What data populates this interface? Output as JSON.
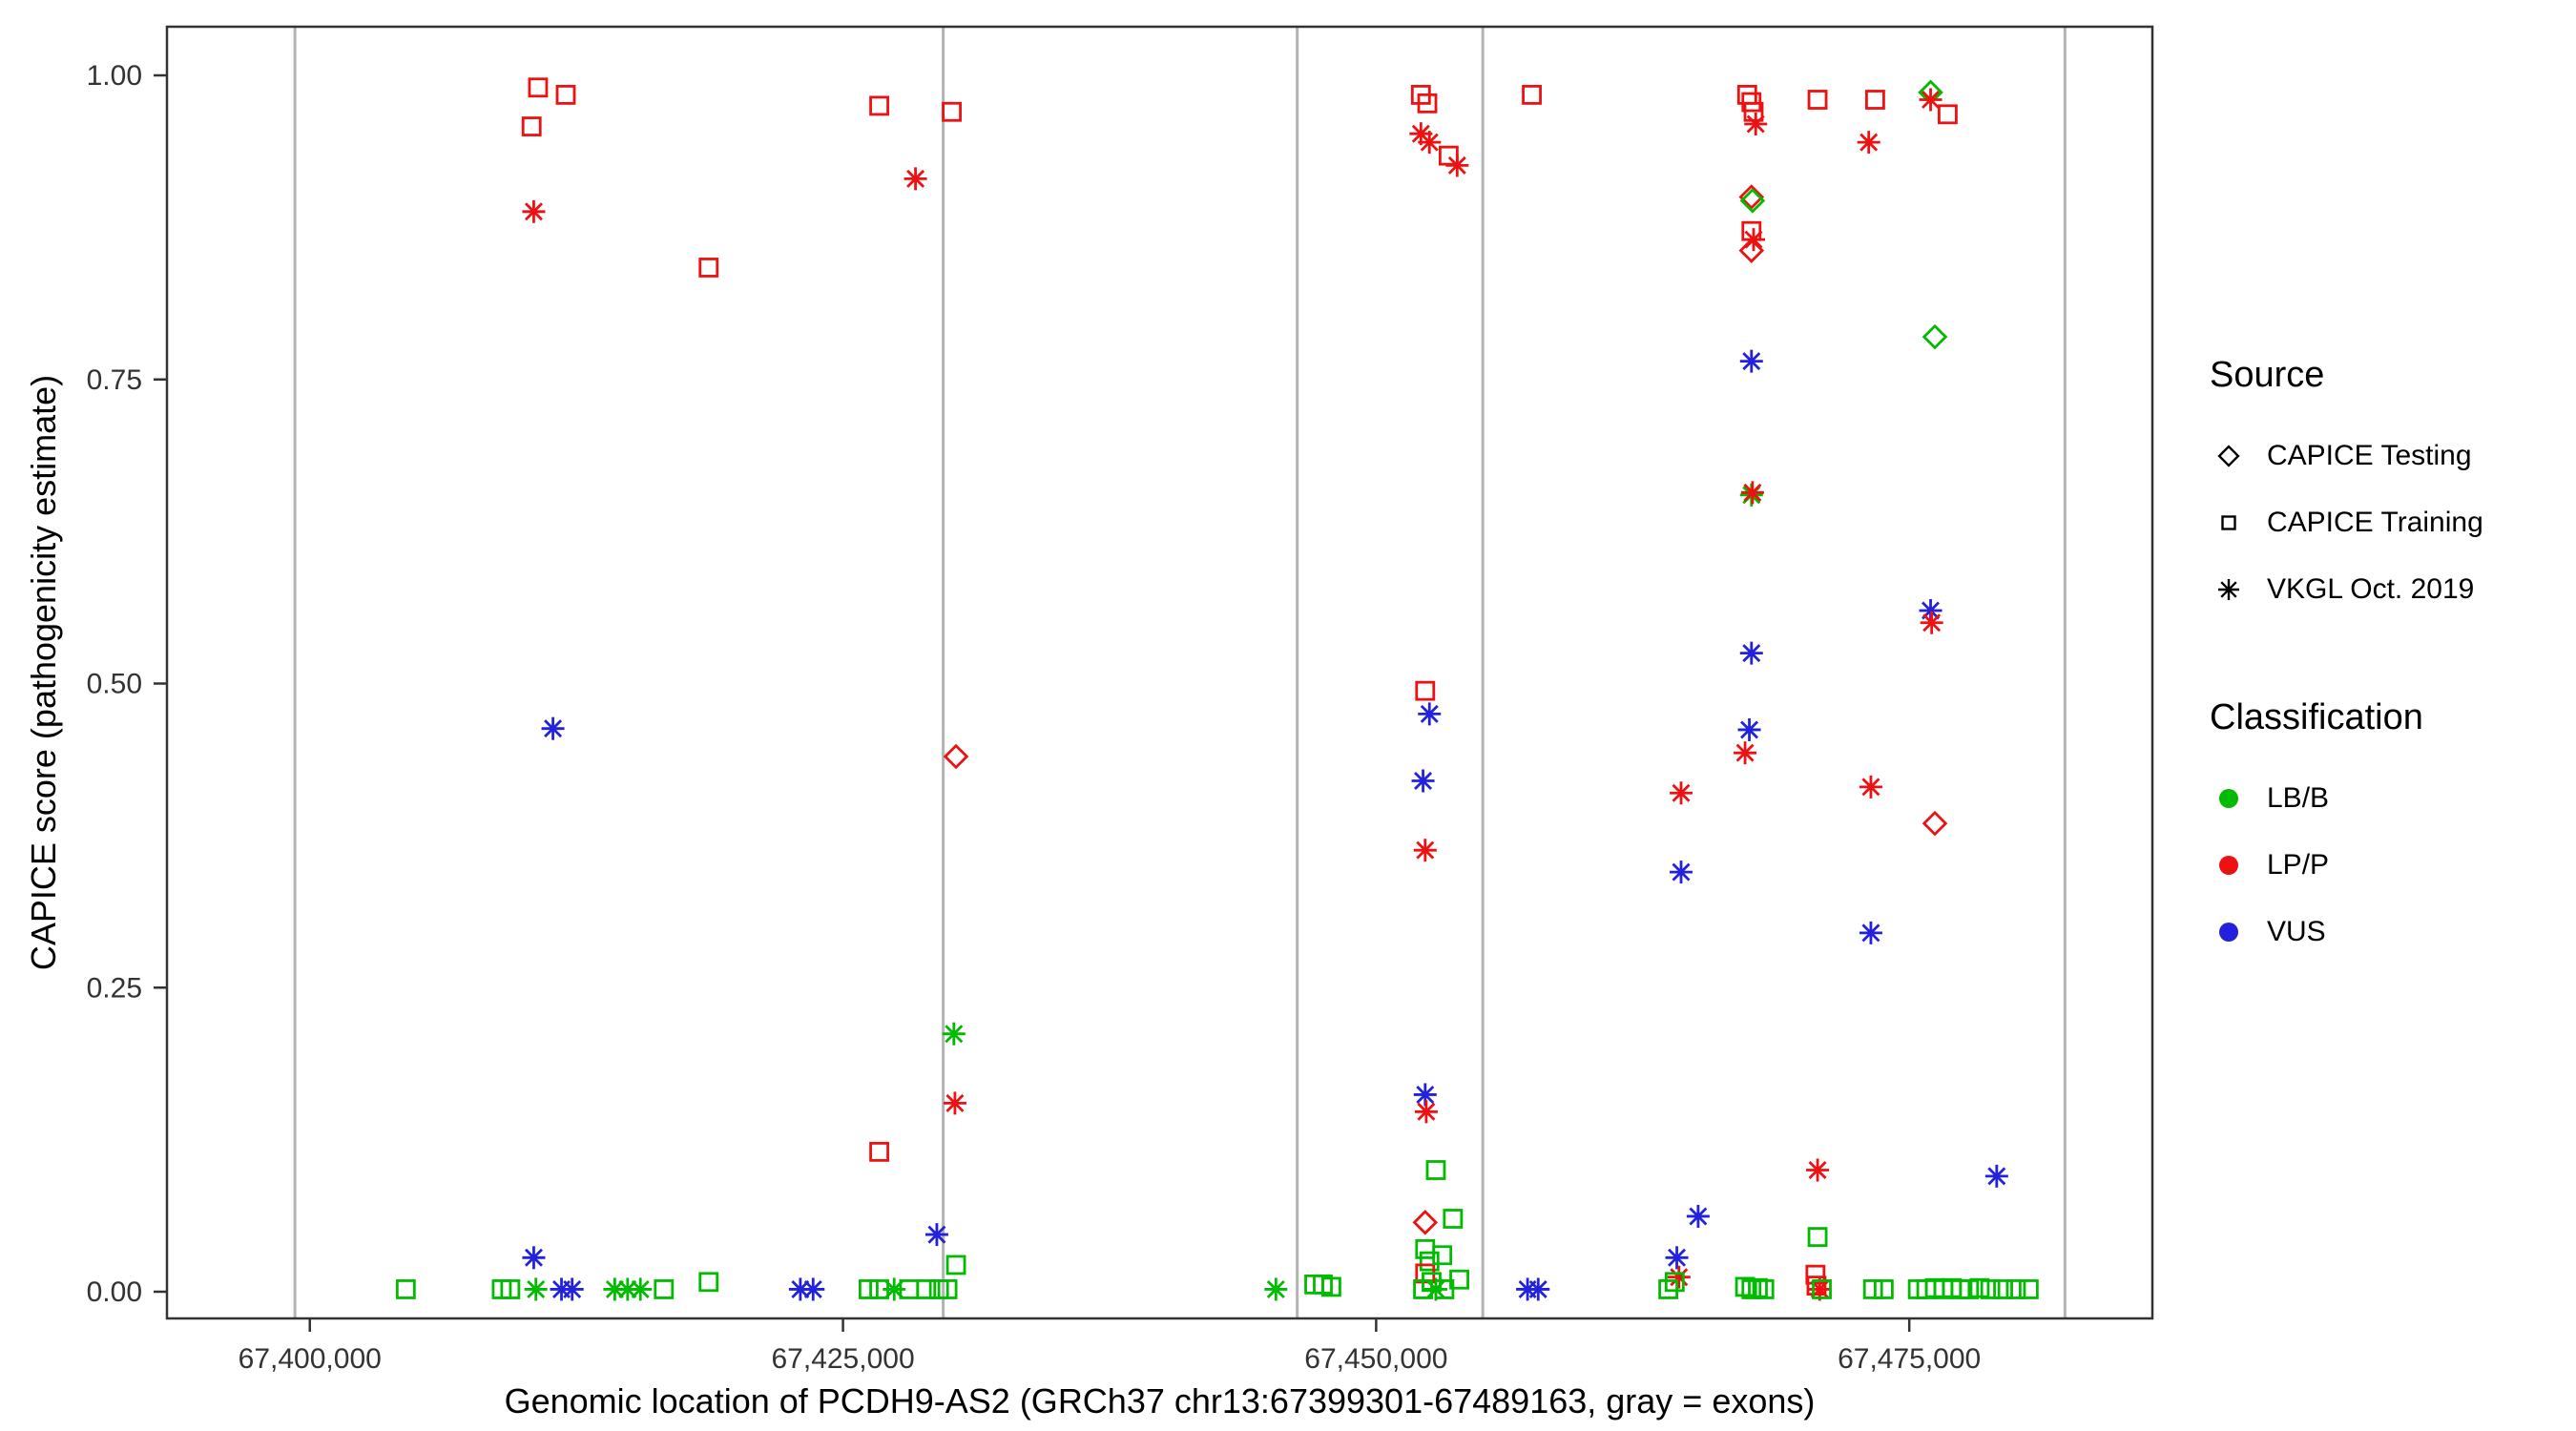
{
  "legend": {
    "source": {
      "title": "Source",
      "items": [
        {
          "label": "CAPICE Testing",
          "shape": "diamond"
        },
        {
          "label": "CAPICE Training",
          "shape": "square"
        },
        {
          "label": "VKGL Oct. 2019",
          "shape": "asterisk"
        }
      ]
    },
    "classification": {
      "title": "Classification",
      "items": [
        {
          "label": "LB/B",
          "color": "#00bb00"
        },
        {
          "label": "LP/P",
          "color": "#ee1111"
        },
        {
          "label": "VUS",
          "color": "#2222dd"
        }
      ]
    }
  },
  "chart_data": {
    "type": "scatter",
    "title": "",
    "xlabel": "Genomic location of PCDH9-AS2 (GRCh37 chr13:67399301-67489163, gray = exons)",
    "ylabel": "CAPICE score (pathogenicity estimate)",
    "xlim": [
      67393300,
      67486400
    ],
    "ylim": [
      0,
      1
    ],
    "legend_position": "right",
    "grid": false,
    "x_ticks": [
      {
        "value": 67400000,
        "label": "67,400,000"
      },
      {
        "value": 67425000,
        "label": "67,425,000"
      },
      {
        "value": 67450000,
        "label": "67,450,000"
      },
      {
        "value": 67475000,
        "label": "67,475,000"
      }
    ],
    "y_ticks": [
      {
        "value": 0.0,
        "label": "0.00"
      },
      {
        "value": 0.25,
        "label": "0.25"
      },
      {
        "value": 0.5,
        "label": "0.50"
      },
      {
        "value": 0.75,
        "label": "0.75"
      },
      {
        "value": 1.0,
        "label": "1.00"
      }
    ],
    "exon_positions": [
      67399300,
      67429700,
      67446300,
      67455000,
      67482300
    ],
    "shape_map": {
      "testing": "diamond",
      "training": "square",
      "vkgl": "asterisk"
    },
    "source_labels": {
      "testing": "CAPICE Testing",
      "training": "CAPICE Training",
      "vkgl": "VKGL Oct. 2019"
    },
    "color_map": {
      "LB/B": "#00bb00",
      "LP/P": "#ee1111",
      "VUS": "#2222dd"
    },
    "point_columns": [
      "genomic_position",
      "capice_score",
      "source",
      "classification"
    ],
    "points": [
      [
        67410700,
        0.99,
        "training",
        "LP/P"
      ],
      [
        67412000,
        0.984,
        "training",
        "LP/P"
      ],
      [
        67410400,
        0.958,
        "training",
        "LP/P"
      ],
      [
        67410500,
        0.888,
        "vkgl",
        "LP/P"
      ],
      [
        67418700,
        0.842,
        "training",
        "LP/P"
      ],
      [
        67411400,
        0.463,
        "vkgl",
        "VUS"
      ],
      [
        67410500,
        0.028,
        "vkgl",
        "VUS"
      ],
      [
        67404500,
        0.002,
        "training",
        "LB/B"
      ],
      [
        67409000,
        0.002,
        "training",
        "LB/B"
      ],
      [
        67409400,
        0.002,
        "training",
        "LB/B"
      ],
      [
        67410600,
        0.002,
        "vkgl",
        "LB/B"
      ],
      [
        67411800,
        0.002,
        "vkgl",
        "VUS"
      ],
      [
        67412300,
        0.002,
        "vkgl",
        "VUS"
      ],
      [
        67414300,
        0.002,
        "vkgl",
        "LB/B"
      ],
      [
        67414900,
        0.002,
        "vkgl",
        "LB/B"
      ],
      [
        67415500,
        0.002,
        "vkgl",
        "LB/B"
      ],
      [
        67416600,
        0.002,
        "training",
        "LB/B"
      ],
      [
        67418700,
        0.008,
        "training",
        "LB/B"
      ],
      [
        67423000,
        0.002,
        "vkgl",
        "VUS"
      ],
      [
        67423600,
        0.002,
        "vkgl",
        "VUS"
      ],
      [
        67426200,
        0.002,
        "training",
        "LB/B"
      ],
      [
        67426700,
        0.002,
        "training",
        "LB/B"
      ],
      [
        67427400,
        0.002,
        "vkgl",
        "LB/B"
      ],
      [
        67428100,
        0.002,
        "training",
        "LB/B"
      ],
      [
        67428900,
        0.002,
        "training",
        "LB/B"
      ],
      [
        67429500,
        0.002,
        "training",
        "LB/B"
      ],
      [
        67429900,
        0.002,
        "training",
        "LB/B"
      ],
      [
        67426700,
        0.975,
        "training",
        "LP/P"
      ],
      [
        67430100,
        0.97,
        "training",
        "LP/P"
      ],
      [
        67428400,
        0.915,
        "vkgl",
        "LP/P"
      ],
      [
        67430300,
        0.44,
        "testing",
        "LP/P"
      ],
      [
        67430200,
        0.212,
        "vkgl",
        "LB/B"
      ],
      [
        67430250,
        0.155,
        "vkgl",
        "LP/P"
      ],
      [
        67426700,
        0.115,
        "training",
        "LP/P"
      ],
      [
        67429400,
        0.047,
        "vkgl",
        "VUS"
      ],
      [
        67430300,
        0.022,
        "training",
        "LB/B"
      ],
      [
        67445300,
        0.002,
        "vkgl",
        "LB/B"
      ],
      [
        67447100,
        0.006,
        "training",
        "LB/B"
      ],
      [
        67447500,
        0.006,
        "training",
        "LB/B"
      ],
      [
        67447900,
        0.004,
        "training",
        "LB/B"
      ],
      [
        67452100,
        0.984,
        "training",
        "LP/P"
      ],
      [
        67452400,
        0.977,
        "training",
        "LP/P"
      ],
      [
        67452100,
        0.952,
        "vkgl",
        "LP/P"
      ],
      [
        67452500,
        0.945,
        "vkgl",
        "LP/P"
      ],
      [
        67453400,
        0.934,
        "training",
        "LP/P"
      ],
      [
        67453800,
        0.926,
        "vkgl",
        "LP/P"
      ],
      [
        67457300,
        0.984,
        "training",
        "LP/P"
      ],
      [
        67452300,
        0.494,
        "training",
        "LP/P"
      ],
      [
        67452500,
        0.475,
        "vkgl",
        "VUS"
      ],
      [
        67452200,
        0.42,
        "vkgl",
        "VUS"
      ],
      [
        67452300,
        0.363,
        "vkgl",
        "LP/P"
      ],
      [
        67452300,
        0.162,
        "vkgl",
        "VUS"
      ],
      [
        67452350,
        0.148,
        "vkgl",
        "LP/P"
      ],
      [
        67452800,
        0.1,
        "training",
        "LB/B"
      ],
      [
        67452300,
        0.057,
        "testing",
        "LP/P"
      ],
      [
        67453600,
        0.06,
        "training",
        "LB/B"
      ],
      [
        67452300,
        0.035,
        "training",
        "LB/B"
      ],
      [
        67452500,
        0.025,
        "training",
        "LB/B"
      ],
      [
        67452300,
        0.015,
        "training",
        "LP/P"
      ],
      [
        67452600,
        0.008,
        "training",
        "LB/B"
      ],
      [
        67452200,
        0.002,
        "training",
        "LB/B"
      ],
      [
        67452800,
        0.002,
        "vkgl",
        "LB/B"
      ],
      [
        67453200,
        0.002,
        "training",
        "LB/B"
      ],
      [
        67453900,
        0.01,
        "training",
        "LB/B"
      ],
      [
        67453100,
        0.03,
        "training",
        "LB/B"
      ],
      [
        67457100,
        0.002,
        "vkgl",
        "VUS"
      ],
      [
        67457600,
        0.002,
        "vkgl",
        "VUS"
      ],
      [
        67467400,
        0.984,
        "training",
        "LP/P"
      ],
      [
        67467600,
        0.978,
        "training",
        "LP/P"
      ],
      [
        67467700,
        0.97,
        "training",
        "LP/P"
      ],
      [
        67467800,
        0.96,
        "vkgl",
        "LP/P"
      ],
      [
        67470700,
        0.98,
        "training",
        "LP/P"
      ],
      [
        67473400,
        0.98,
        "training",
        "LP/P"
      ],
      [
        67473100,
        0.945,
        "vkgl",
        "LP/P"
      ],
      [
        67476000,
        0.986,
        "testing",
        "LB/B"
      ],
      [
        67476000,
        0.98,
        "vkgl",
        "LP/P"
      ],
      [
        67476800,
        0.968,
        "training",
        "LP/P"
      ],
      [
        67467600,
        0.9,
        "testing",
        "LP/P"
      ],
      [
        67467650,
        0.897,
        "testing",
        "LB/B"
      ],
      [
        67467600,
        0.872,
        "training",
        "LP/P"
      ],
      [
        67467700,
        0.865,
        "vkgl",
        "LP/P"
      ],
      [
        67467600,
        0.856,
        "testing",
        "LP/P"
      ],
      [
        67467600,
        0.765,
        "vkgl",
        "VUS"
      ],
      [
        67476200,
        0.785,
        "testing",
        "LB/B"
      ],
      [
        67467600,
        0.655,
        "vkgl",
        "LB/B"
      ],
      [
        67467650,
        0.657,
        "vkgl",
        "LP/P"
      ],
      [
        67467600,
        0.525,
        "vkgl",
        "VUS"
      ],
      [
        67476000,
        0.56,
        "vkgl",
        "VUS"
      ],
      [
        67476050,
        0.55,
        "vkgl",
        "LP/P"
      ],
      [
        67467500,
        0.462,
        "vkgl",
        "VUS"
      ],
      [
        67467300,
        0.443,
        "vkgl",
        "LP/P"
      ],
      [
        67464300,
        0.41,
        "vkgl",
        "LP/P"
      ],
      [
        67473200,
        0.415,
        "vkgl",
        "LP/P"
      ],
      [
        67464300,
        0.345,
        "vkgl",
        "VUS"
      ],
      [
        67473200,
        0.295,
        "vkgl",
        "VUS"
      ],
      [
        67476200,
        0.385,
        "testing",
        "LP/P"
      ],
      [
        67470700,
        0.1,
        "vkgl",
        "LP/P"
      ],
      [
        67479100,
        0.095,
        "vkgl",
        "VUS"
      ],
      [
        67465100,
        0.062,
        "vkgl",
        "VUS"
      ],
      [
        67470700,
        0.045,
        "training",
        "LB/B"
      ],
      [
        67464100,
        0.028,
        "vkgl",
        "VUS"
      ],
      [
        67464200,
        0.012,
        "vkgl",
        "LP/P"
      ],
      [
        67464000,
        0.008,
        "training",
        "LB/B"
      ],
      [
        67470600,
        0.014,
        "training",
        "LP/P"
      ],
      [
        67470650,
        0.005,
        "training",
        "LP/P"
      ],
      [
        67470800,
        0.002,
        "vkgl",
        "LP/P"
      ],
      [
        67463700,
        0.002,
        "training",
        "LB/B"
      ],
      [
        67467300,
        0.004,
        "training",
        "LB/B"
      ],
      [
        67467600,
        0.002,
        "training",
        "LB/B"
      ],
      [
        67467900,
        0.003,
        "training",
        "LB/B"
      ],
      [
        67468200,
        0.002,
        "training",
        "LB/B"
      ],
      [
        67470900,
        0.002,
        "training",
        "LB/B"
      ],
      [
        67473300,
        0.002,
        "training",
        "LB/B"
      ],
      [
        67473800,
        0.002,
        "training",
        "LB/B"
      ],
      [
        67475400,
        0.002,
        "training",
        "LB/B"
      ],
      [
        67475800,
        0.002,
        "training",
        "LB/B"
      ],
      [
        67476200,
        0.003,
        "training",
        "LB/B"
      ],
      [
        67476600,
        0.002,
        "training",
        "LB/B"
      ],
      [
        67477000,
        0.003,
        "training",
        "LB/B"
      ],
      [
        67477400,
        0.002,
        "training",
        "LB/B"
      ],
      [
        67477800,
        0.002,
        "training",
        "LB/B"
      ],
      [
        67478300,
        0.003,
        "training",
        "LB/B"
      ],
      [
        67478800,
        0.002,
        "training",
        "LB/B"
      ],
      [
        67479400,
        0.002,
        "training",
        "LB/B"
      ],
      [
        67480000,
        0.002,
        "training",
        "LB/B"
      ],
      [
        67480600,
        0.002,
        "training",
        "LB/B"
      ]
    ]
  }
}
